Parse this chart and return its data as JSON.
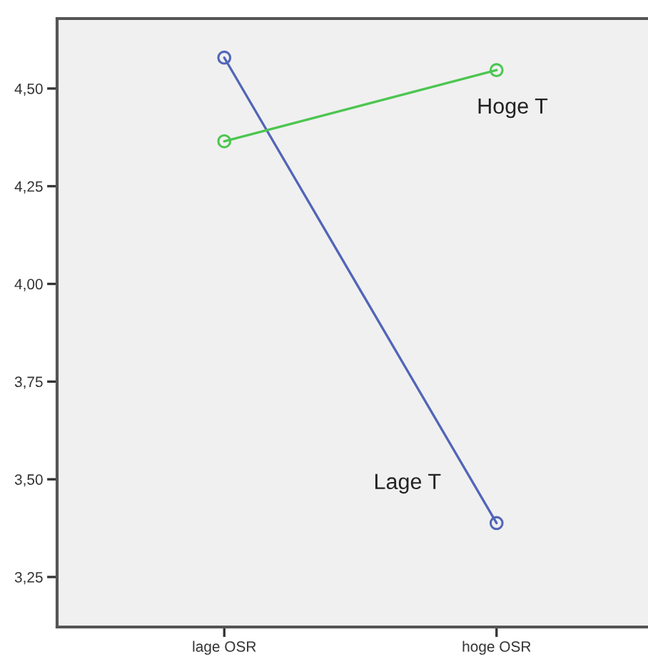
{
  "chart_data": {
    "type": "line",
    "categories": [
      "lage OSR",
      "hoge OSR"
    ],
    "series": [
      {
        "name": "Lage T",
        "color": "#5265b8",
        "values": [
          4.579,
          3.388
        ]
      },
      {
        "name": "Hoge T",
        "color": "#4cc650",
        "values": [
          4.365,
          4.547
        ]
      }
    ],
    "marker": "circle",
    "line_style": "solid",
    "legend": false,
    "grid": false,
    "ylim": [
      3.122,
      4.679
    ],
    "yticks": [
      {
        "value": 3.25,
        "label": "3,25"
      },
      {
        "value": 3.5,
        "label": "3,50"
      },
      {
        "value": 3.75,
        "label": "3,75"
      },
      {
        "value": 4.0,
        "label": "4,00"
      },
      {
        "value": 4.25,
        "label": "4,25"
      },
      {
        "value": 4.5,
        "label": "4,50"
      }
    ]
  }
}
